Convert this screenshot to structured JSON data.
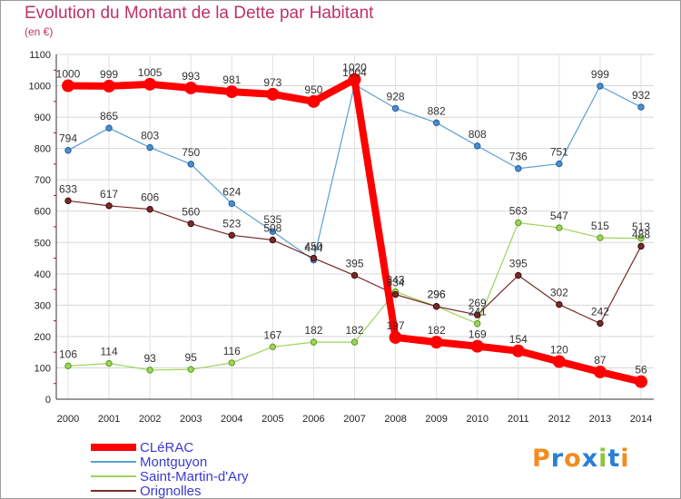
{
  "header": {
    "title": "Evolution du Montant de la Dette par Habitant",
    "subtitle": "(en €)"
  },
  "logo": {
    "text": "Proxiti",
    "colors": [
      "#f28c1c",
      "#2a7fd4",
      "#f28c1c",
      "#2a7fd4",
      "#8cc43c",
      "#2a7fd4",
      "#f28c1c"
    ]
  },
  "chart_data": {
    "type": "line",
    "title": "Evolution du Montant de la Dette par Habitant",
    "subtitle": "(en €)",
    "xlabel": "",
    "ylabel": "",
    "x": [
      2000,
      2001,
      2002,
      2003,
      2004,
      2005,
      2006,
      2007,
      2008,
      2009,
      2010,
      2011,
      2012,
      2013,
      2014
    ],
    "ylim": [
      0,
      1100
    ],
    "yticks": [
      0,
      100,
      200,
      300,
      400,
      500,
      600,
      700,
      800,
      900,
      1000,
      1100
    ],
    "grid": true,
    "legend_position": "bottom-left",
    "series": [
      {
        "name": "Montguyon",
        "color": "#5a9fd4",
        "values": [
          794,
          865,
          803,
          750,
          624,
          535,
          444,
          1004,
          928,
          882,
          808,
          736,
          751,
          999,
          932
        ]
      },
      {
        "name": "Saint-Martin-d'Ary",
        "color": "#9ed45a",
        "values": [
          106,
          114,
          93,
          95,
          116,
          167,
          182,
          182,
          343,
          296,
          241,
          563,
          547,
          515,
          513
        ]
      },
      {
        "name": "Orignolles",
        "color": "#7a2a2a",
        "values": [
          633,
          617,
          606,
          560,
          523,
          508,
          450,
          395,
          334,
          296,
          269,
          395,
          302,
          242,
          488
        ]
      },
      {
        "name": "CLéRAC",
        "color": "#ff0000",
        "values": [
          1000,
          999,
          1005,
          993,
          981,
          973,
          950,
          1020,
          197,
          182,
          169,
          154,
          120,
          87,
          56
        ]
      }
    ]
  }
}
